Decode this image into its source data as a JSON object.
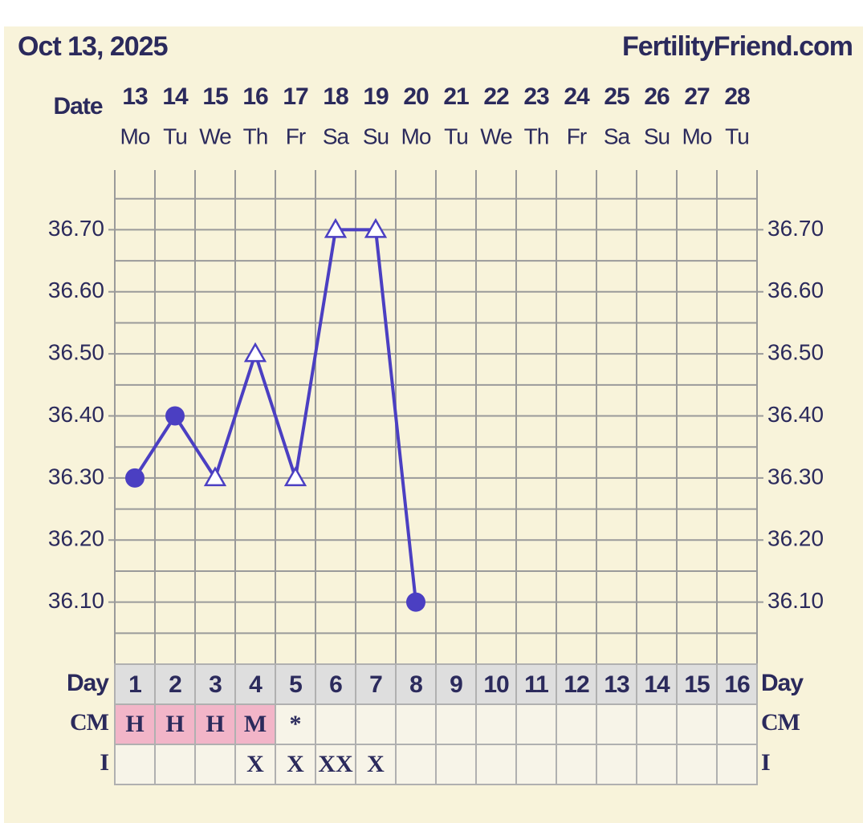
{
  "chart_data": {
    "type": "line",
    "title": "Oct 13, 2025",
    "site": "FertilityFriend.com",
    "date_label": "Date",
    "categories": [
      "13",
      "14",
      "15",
      "16",
      "17",
      "18",
      "19",
      "20",
      "21",
      "22",
      "23",
      "24",
      "25",
      "26",
      "27",
      "28"
    ],
    "weekdays": [
      "Mo",
      "Tu",
      "We",
      "Th",
      "Fr",
      "Sa",
      "Su",
      "Mo",
      "Tu",
      "We",
      "Th",
      "Fr",
      "Sa",
      "Su",
      "Mo",
      "Tu"
    ],
    "ylim": [
      36.0,
      36.8
    ],
    "yticks": [
      {
        "value": 36.1,
        "label": "36.10"
      },
      {
        "value": 36.2,
        "label": "36.20"
      },
      {
        "value": 36.3,
        "label": "36.30"
      },
      {
        "value": 36.4,
        "label": "36.40"
      },
      {
        "value": 36.5,
        "label": "36.50"
      },
      {
        "value": 36.6,
        "label": "36.60"
      },
      {
        "value": 36.7,
        "label": "36.70"
      }
    ],
    "minor_yticks": [
      36.05,
      36.15,
      36.25,
      36.35,
      36.45,
      36.55,
      36.65,
      36.75
    ],
    "grid": true,
    "series": [
      {
        "color": "#4b3fc2",
        "values": [
          36.3,
          36.4,
          36.3,
          36.5,
          36.3,
          36.7,
          36.7,
          36.1,
          null,
          null,
          null,
          null,
          null,
          null,
          null,
          null
        ],
        "markers": [
          "circle",
          "circle",
          "triangle",
          "triangle",
          "triangle",
          "triangle",
          "triangle",
          "circle",
          null,
          null,
          null,
          null,
          null,
          null,
          null,
          null
        ]
      }
    ],
    "table": {
      "day_label": "Day",
      "days": [
        1,
        2,
        3,
        4,
        5,
        6,
        7,
        8,
        9,
        10,
        11,
        12,
        13,
        14,
        15,
        16
      ],
      "cm_label": "CM",
      "cm": [
        "H",
        "H",
        "H",
        "M",
        "*",
        null,
        null,
        null,
        null,
        null,
        null,
        null,
        null,
        null,
        null,
        null
      ],
      "cm_fill": [
        "#f2b5c8",
        "#f2b5c8",
        "#f2b5c8",
        "#f2b5c8",
        null,
        null,
        null,
        null,
        null,
        null,
        null,
        null,
        null,
        null,
        null,
        null
      ],
      "i_label": "I",
      "i": [
        null,
        null,
        null,
        "X",
        "X",
        "XX",
        "X",
        null,
        null,
        null,
        null,
        null,
        null,
        null,
        null,
        null
      ]
    }
  }
}
